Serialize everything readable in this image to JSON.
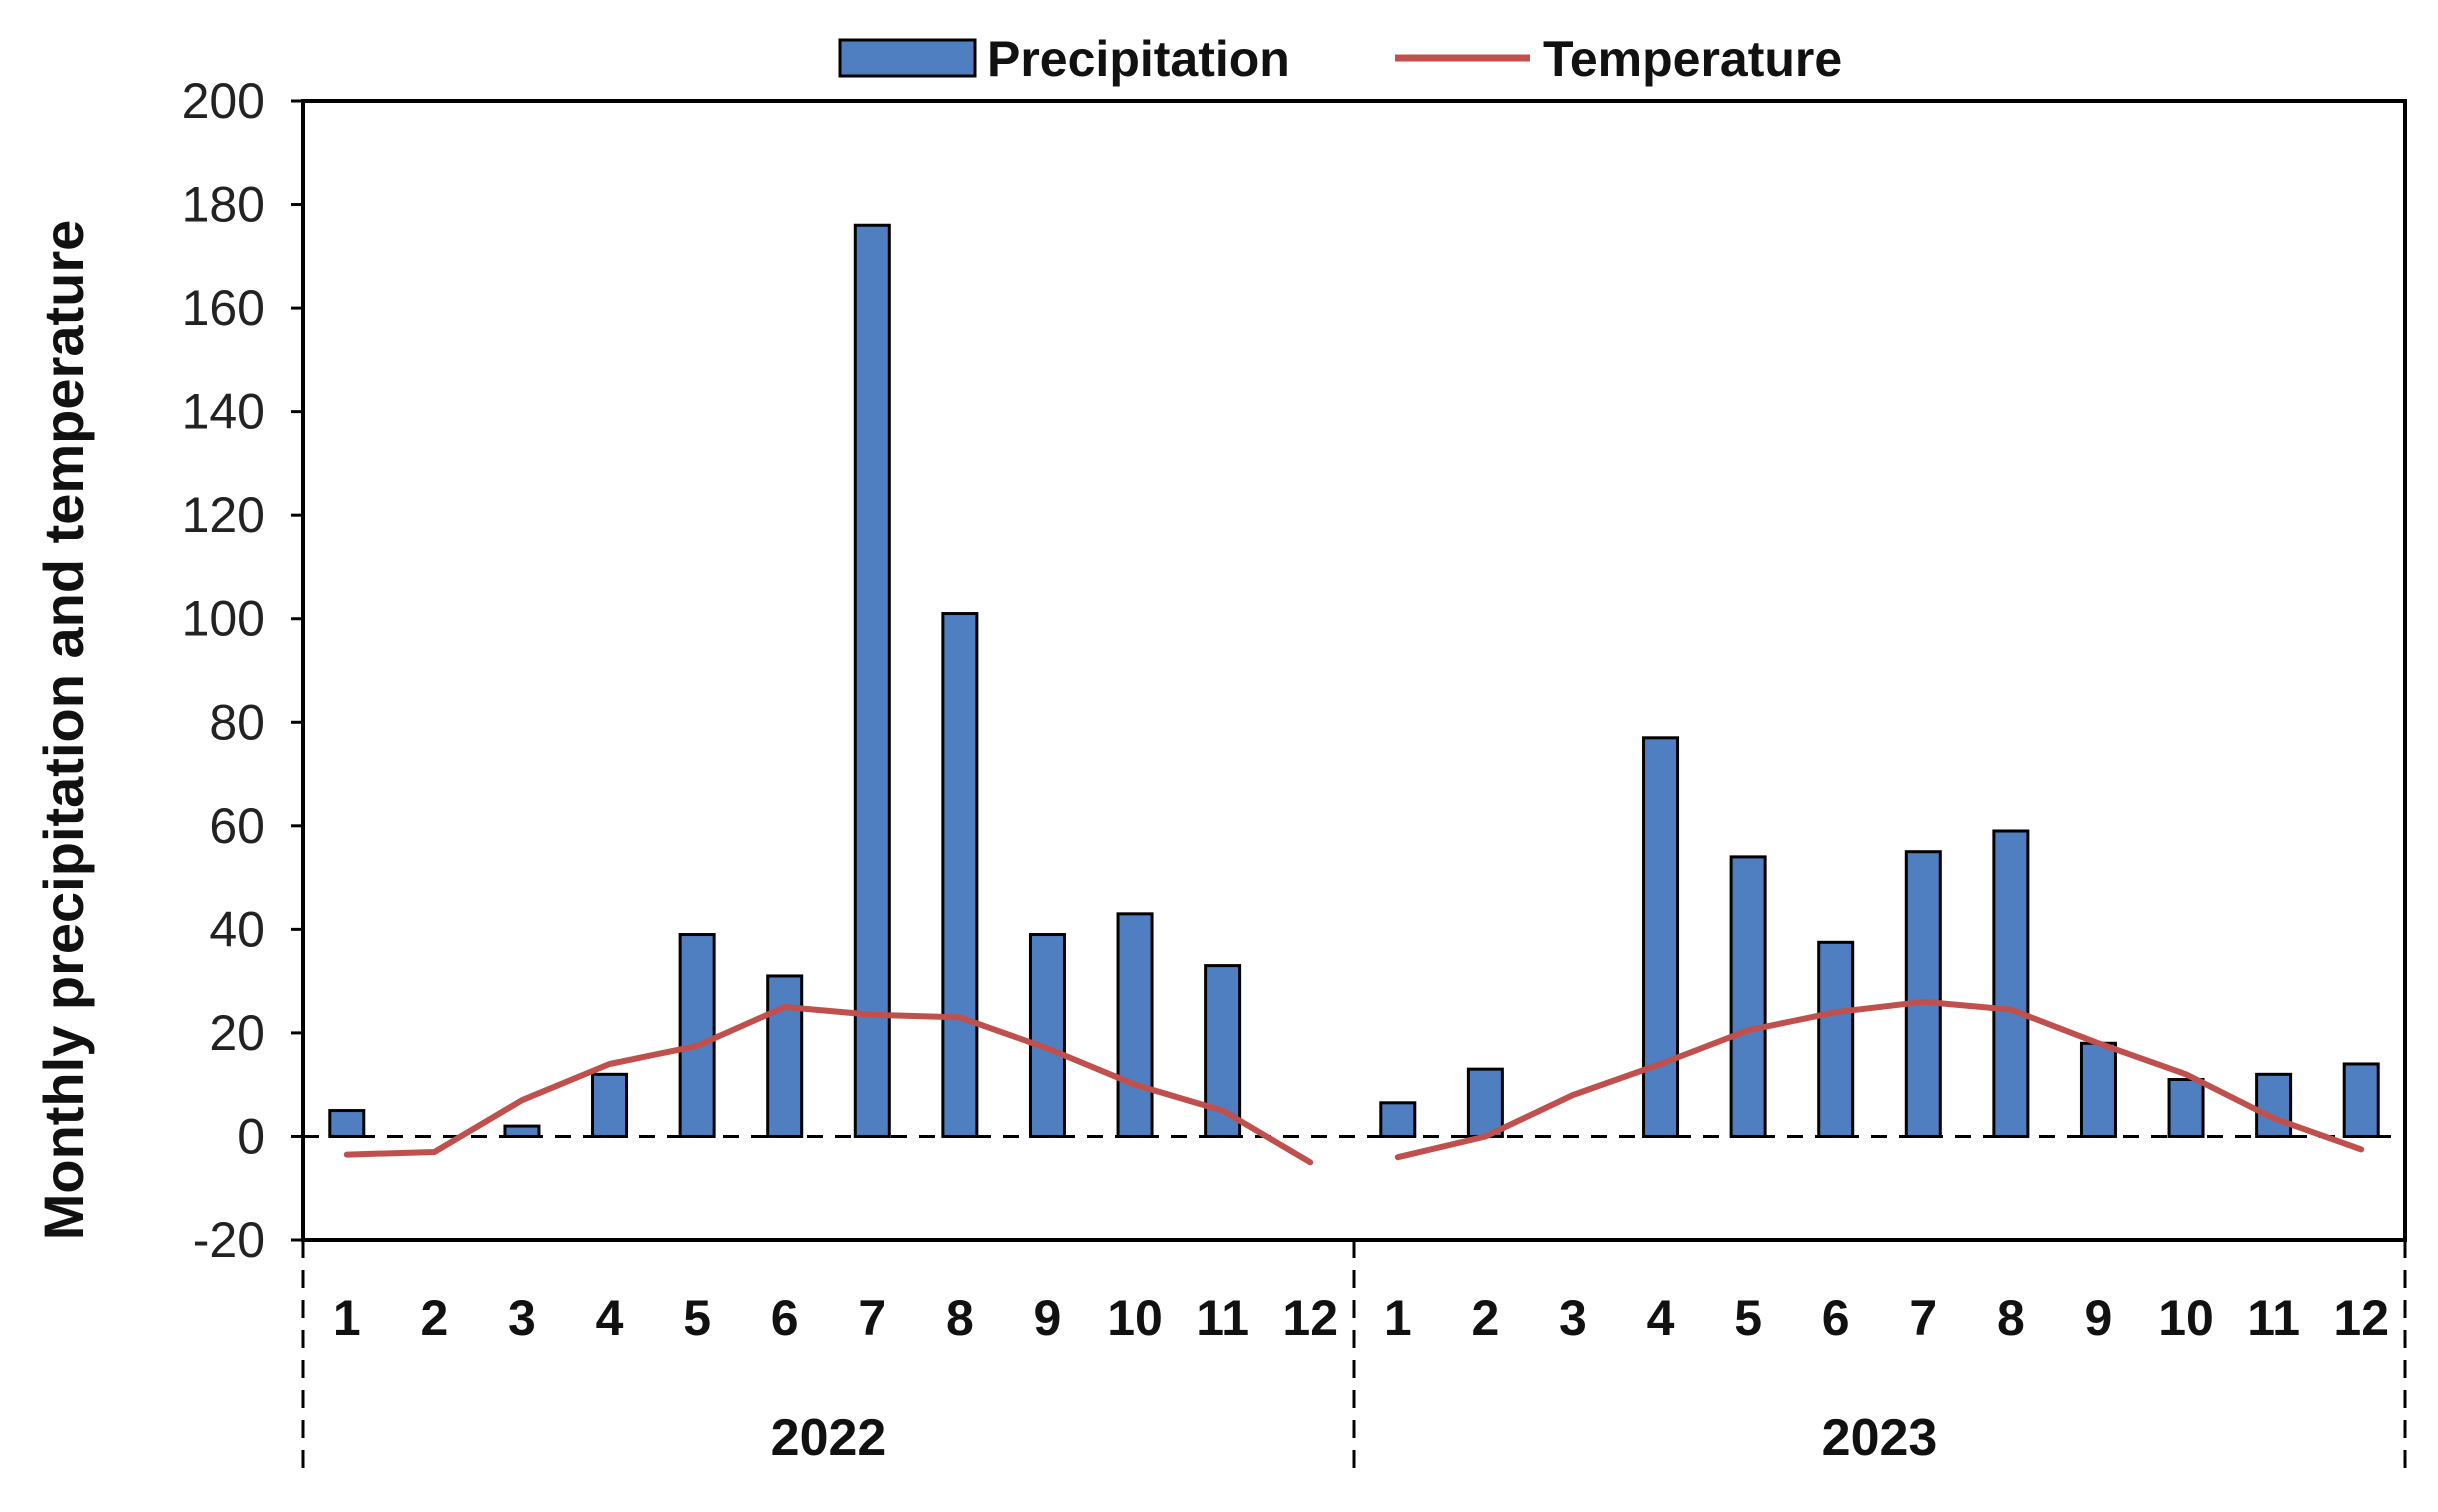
{
  "chart_data": {
    "type": "bar",
    "title": "",
    "xlabel": "",
    "ylabel": "Monthly precipitation and temperature",
    "ylim": [
      -20,
      200
    ],
    "yticks": [
      -20,
      0,
      20,
      40,
      60,
      80,
      100,
      120,
      140,
      160,
      180,
      200
    ],
    "grid": false,
    "legend_position": "top-center",
    "groups": [
      {
        "year": "2022",
        "months": [
          "1",
          "2",
          "3",
          "4",
          "5",
          "6",
          "7",
          "8",
          "9",
          "10",
          "11",
          "12"
        ]
      },
      {
        "year": "2023",
        "months": [
          "1",
          "2",
          "3",
          "4",
          "5",
          "6",
          "7",
          "8",
          "9",
          "10",
          "11",
          "12"
        ]
      }
    ],
    "series": [
      {
        "name": "Precipitation",
        "type": "bar",
        "color": "#4f7fc0",
        "values": [
          5,
          0,
          2,
          12,
          39,
          31,
          176,
          101,
          39,
          43,
          33,
          0,
          6.5,
          13,
          0,
          77,
          54,
          37.5,
          55,
          59,
          18,
          11,
          12,
          14
        ]
      },
      {
        "name": "Temperature",
        "type": "line",
        "color": "#c0504d",
        "values": [
          -3.5,
          -3,
          7,
          14,
          17.5,
          25,
          23.5,
          23,
          17,
          10,
          5,
          -5,
          -4,
          0,
          8,
          14,
          20.5,
          24,
          26,
          24.5,
          18,
          12,
          3.5,
          -2.5
        ]
      }
    ]
  }
}
